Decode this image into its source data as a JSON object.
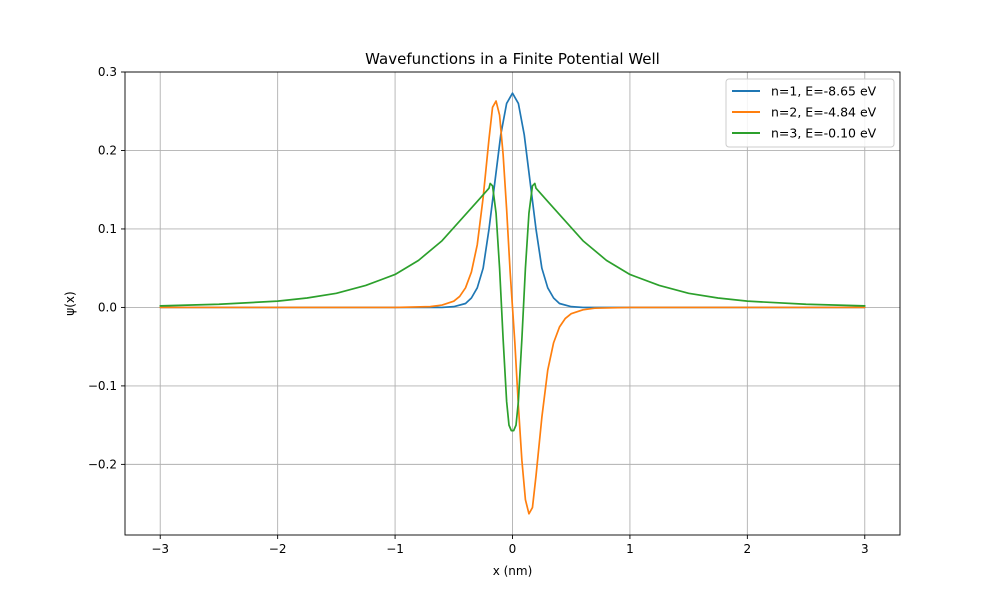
{
  "chart_data": {
    "type": "line",
    "title": "Wavefunctions in a Finite Potential Well",
    "xlabel": "x (nm)",
    "ylabel": "ψ(x)",
    "xlim": [
      -3.3,
      3.3
    ],
    "ylim": [
      -0.29,
      0.3
    ],
    "xticks": [
      -3,
      -2,
      -1,
      0,
      1,
      2,
      3
    ],
    "xtick_labels": [
      "−3",
      "−2",
      "−1",
      "0",
      "1",
      "2",
      "3"
    ],
    "yticks": [
      -0.2,
      -0.1,
      0.0,
      0.1,
      0.2,
      0.3
    ],
    "ytick_labels": [
      "−0.2",
      "−0.1",
      "0.0",
      "0.1",
      "0.2",
      "0.3"
    ],
    "grid": true,
    "legend_position": "top-right",
    "series": [
      {
        "name": "n=1, E=-8.65 eV",
        "color": "#1f77b4",
        "points": [
          [
            -3.0,
            0.0
          ],
          [
            -1.0,
            0.0
          ],
          [
            -0.6,
            0.0
          ],
          [
            -0.5,
            0.001
          ],
          [
            -0.4,
            0.005
          ],
          [
            -0.35,
            0.012
          ],
          [
            -0.3,
            0.025
          ],
          [
            -0.25,
            0.05
          ],
          [
            -0.2,
            0.1
          ],
          [
            -0.15,
            0.16
          ],
          [
            -0.1,
            0.22
          ],
          [
            -0.05,
            0.26
          ],
          [
            0.0,
            0.273
          ],
          [
            0.05,
            0.26
          ],
          [
            0.1,
            0.22
          ],
          [
            0.15,
            0.16
          ],
          [
            0.2,
            0.1
          ],
          [
            0.25,
            0.05
          ],
          [
            0.3,
            0.025
          ],
          [
            0.35,
            0.012
          ],
          [
            0.4,
            0.005
          ],
          [
            0.5,
            0.001
          ],
          [
            0.6,
            0.0
          ],
          [
            1.0,
            0.0
          ],
          [
            3.0,
            0.0
          ]
        ]
      },
      {
        "name": "n=2, E=-4.84 eV",
        "color": "#ff7f0e",
        "points": [
          [
            -3.0,
            0.0
          ],
          [
            -1.0,
            0.0
          ],
          [
            -0.7,
            0.001
          ],
          [
            -0.6,
            0.003
          ],
          [
            -0.5,
            0.008
          ],
          [
            -0.45,
            0.014
          ],
          [
            -0.4,
            0.025
          ],
          [
            -0.35,
            0.045
          ],
          [
            -0.3,
            0.08
          ],
          [
            -0.25,
            0.14
          ],
          [
            -0.2,
            0.215
          ],
          [
            -0.17,
            0.255
          ],
          [
            -0.14,
            0.263
          ],
          [
            -0.11,
            0.245
          ],
          [
            -0.08,
            0.195
          ],
          [
            -0.05,
            0.125
          ],
          [
            -0.02,
            0.045
          ],
          [
            0.0,
            0.0
          ],
          [
            0.02,
            -0.045
          ],
          [
            0.05,
            -0.125
          ],
          [
            0.08,
            -0.195
          ],
          [
            0.11,
            -0.245
          ],
          [
            0.14,
            -0.263
          ],
          [
            0.17,
            -0.255
          ],
          [
            0.2,
            -0.215
          ],
          [
            0.25,
            -0.14
          ],
          [
            0.3,
            -0.08
          ],
          [
            0.35,
            -0.045
          ],
          [
            0.4,
            -0.025
          ],
          [
            0.45,
            -0.014
          ],
          [
            0.5,
            -0.008
          ],
          [
            0.6,
            -0.003
          ],
          [
            0.7,
            -0.001
          ],
          [
            1.0,
            0.0
          ],
          [
            3.0,
            0.0
          ]
        ]
      },
      {
        "name": "n=3, E=-0.10 eV",
        "color": "#2ca02c",
        "points": [
          [
            -3.0,
            0.002
          ],
          [
            -2.5,
            0.004
          ],
          [
            -2.0,
            0.008
          ],
          [
            -1.75,
            0.012
          ],
          [
            -1.5,
            0.018
          ],
          [
            -1.25,
            0.028
          ],
          [
            -1.0,
            0.042
          ],
          [
            -0.8,
            0.06
          ],
          [
            -0.6,
            0.085
          ],
          [
            -0.45,
            0.11
          ],
          [
            -0.3,
            0.135
          ],
          [
            -0.2,
            0.152
          ],
          [
            -0.19,
            0.158
          ],
          [
            -0.17,
            0.155
          ],
          [
            -0.14,
            0.12
          ],
          [
            -0.11,
            0.05
          ],
          [
            -0.08,
            -0.04
          ],
          [
            -0.05,
            -0.12
          ],
          [
            -0.03,
            -0.15
          ],
          [
            -0.01,
            -0.157
          ],
          [
            0.0,
            -0.157
          ],
          [
            0.01,
            -0.157
          ],
          [
            0.03,
            -0.15
          ],
          [
            0.05,
            -0.12
          ],
          [
            0.08,
            -0.04
          ],
          [
            0.11,
            0.05
          ],
          [
            0.14,
            0.12
          ],
          [
            0.17,
            0.155
          ],
          [
            0.19,
            0.158
          ],
          [
            0.2,
            0.152
          ],
          [
            0.3,
            0.135
          ],
          [
            0.45,
            0.11
          ],
          [
            0.6,
            0.085
          ],
          [
            0.8,
            0.06
          ],
          [
            1.0,
            0.042
          ],
          [
            1.25,
            0.028
          ],
          [
            1.5,
            0.018
          ],
          [
            1.75,
            0.012
          ],
          [
            2.0,
            0.008
          ],
          [
            2.5,
            0.004
          ],
          [
            3.0,
            0.002
          ]
        ]
      }
    ]
  }
}
